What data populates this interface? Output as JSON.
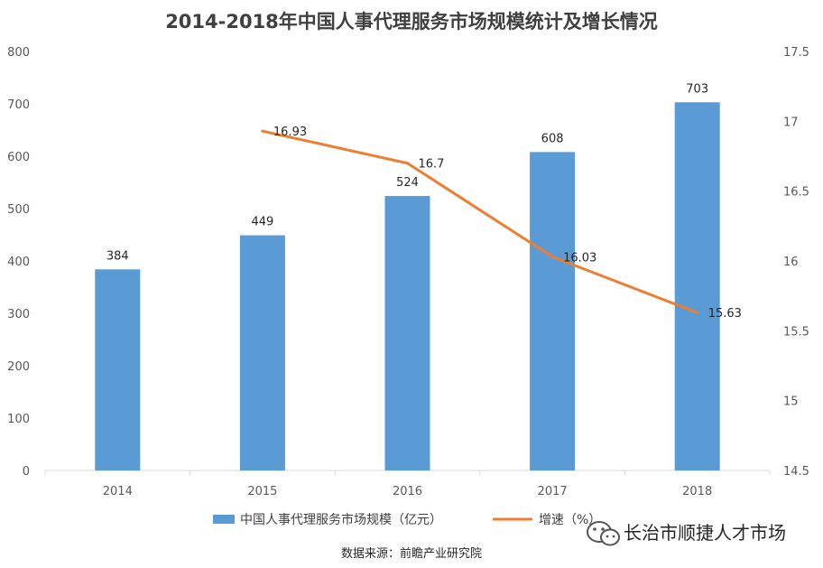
{
  "chart_data": {
    "type": "bar",
    "title": "2014-2018年中国人事代理服务市场规模统计及增长情况",
    "categories": [
      "2014",
      "2015",
      "2016",
      "2017",
      "2018"
    ],
    "series": [
      {
        "name": "中国人事代理服务市场规模（亿元）",
        "type": "bar",
        "axis": "left",
        "color": "#5B9BD5",
        "values": [
          384,
          449,
          524,
          608,
          703
        ],
        "labels": [
          "384",
          "449",
          "524",
          "608",
          "703"
        ]
      },
      {
        "name": "增速（%）",
        "type": "line",
        "axis": "right",
        "color": "#ED7D31",
        "x": [
          "2015",
          "2016",
          "2017",
          "2018"
        ],
        "values": [
          16.93,
          16.7,
          16.03,
          15.63
        ],
        "labels": [
          "16.93",
          "16.7",
          "16.03",
          "15.63"
        ]
      }
    ],
    "y_left": {
      "min": 0,
      "max": 800,
      "ticks": [
        "0",
        "100",
        "200",
        "300",
        "400",
        "500",
        "600",
        "700",
        "800"
      ]
    },
    "y_right": {
      "min": 14.5,
      "max": 17.5,
      "ticks": [
        "14.5",
        "15",
        "15.5",
        "16",
        "16.5",
        "17",
        "17.5"
      ]
    },
    "grid": false,
    "legend": "bottom",
    "source": "数据来源：前瞻产业研究院"
  },
  "watermark": {
    "icon": "wechat-icon",
    "text": "长治市顺捷人才市场"
  }
}
